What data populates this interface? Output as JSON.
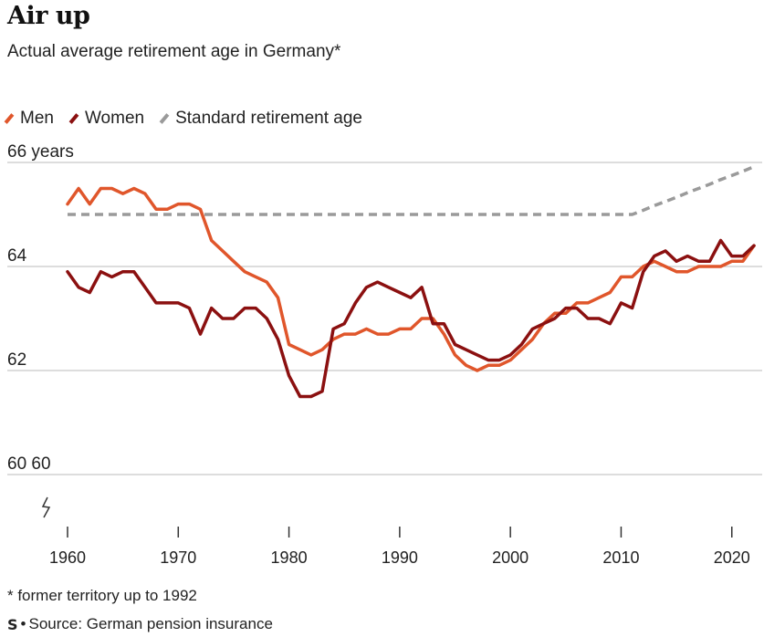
{
  "title": "Air up",
  "subtitle": "Actual average retirement age in Germany*",
  "footnote": "* former territory up to 1992",
  "source": "Source: German pension insurance",
  "logo": "S",
  "colors": {
    "men": "#e0562b",
    "women": "#8b1010",
    "standard": "#9a9a9a",
    "grid": "#bbbbbb",
    "axis": "#333333"
  },
  "chart_data": {
    "type": "line",
    "ylim": [
      60,
      66
    ],
    "xlim": [
      1960,
      2022
    ],
    "y_ticks": [
      {
        "value": 66,
        "label": "66 years"
      },
      {
        "value": 64,
        "label": "64"
      },
      {
        "value": 62,
        "label": "62"
      },
      {
        "value": 60,
        "label": "60 60"
      }
    ],
    "x_ticks": [
      1960,
      1970,
      1980,
      1990,
      2000,
      2010,
      2020
    ],
    "legend_position": "top-left",
    "series": [
      {
        "name": "Men",
        "key": "men",
        "style": "solid",
        "x": [
          1960,
          1961,
          1962,
          1963,
          1964,
          1965,
          1966,
          1967,
          1968,
          1969,
          1970,
          1971,
          1972,
          1973,
          1974,
          1975,
          1976,
          1977,
          1978,
          1979,
          1980,
          1981,
          1982,
          1983,
          1984,
          1985,
          1986,
          1987,
          1988,
          1989,
          1990,
          1991,
          1992,
          1993,
          1994,
          1995,
          1996,
          1997,
          1998,
          1999,
          2000,
          2001,
          2002,
          2003,
          2004,
          2005,
          2006,
          2007,
          2008,
          2009,
          2010,
          2011,
          2012,
          2013,
          2014,
          2015,
          2016,
          2017,
          2018,
          2019,
          2020,
          2021,
          2022
        ],
        "y": [
          65.2,
          65.5,
          65.2,
          65.5,
          65.5,
          65.4,
          65.5,
          65.4,
          65.1,
          65.1,
          65.2,
          65.2,
          65.1,
          64.5,
          64.3,
          64.1,
          63.9,
          63.8,
          63.7,
          63.4,
          62.5,
          62.4,
          62.3,
          62.4,
          62.6,
          62.7,
          62.7,
          62.8,
          62.7,
          62.7,
          62.8,
          62.8,
          63.0,
          63.0,
          62.7,
          62.3,
          62.1,
          62.0,
          62.1,
          62.1,
          62.2,
          62.4,
          62.6,
          62.9,
          63.1,
          63.1,
          63.3,
          63.3,
          63.4,
          63.5,
          63.8,
          63.8,
          64.0,
          64.1,
          64.0,
          63.9,
          63.9,
          64.0,
          64.0,
          64.0,
          64.1,
          64.1,
          64.4
        ]
      },
      {
        "name": "Women",
        "key": "women",
        "style": "solid",
        "x": [
          1960,
          1961,
          1962,
          1963,
          1964,
          1965,
          1966,
          1967,
          1968,
          1969,
          1970,
          1971,
          1972,
          1973,
          1974,
          1975,
          1976,
          1977,
          1978,
          1979,
          1980,
          1981,
          1982,
          1983,
          1984,
          1985,
          1986,
          1987,
          1988,
          1989,
          1990,
          1991,
          1992,
          1993,
          1994,
          1995,
          1996,
          1997,
          1998,
          1999,
          2000,
          2001,
          2002,
          2003,
          2004,
          2005,
          2006,
          2007,
          2008,
          2009,
          2010,
          2011,
          2012,
          2013,
          2014,
          2015,
          2016,
          2017,
          2018,
          2019,
          2020,
          2021,
          2022
        ],
        "y": [
          63.9,
          63.6,
          63.5,
          63.9,
          63.8,
          63.9,
          63.9,
          63.6,
          63.3,
          63.3,
          63.3,
          63.2,
          62.7,
          63.2,
          63.0,
          63.0,
          63.2,
          63.2,
          63.0,
          62.6,
          61.9,
          61.5,
          61.5,
          61.6,
          62.8,
          62.9,
          63.3,
          63.6,
          63.7,
          63.6,
          63.5,
          63.4,
          63.6,
          62.9,
          62.9,
          62.5,
          62.4,
          62.3,
          62.2,
          62.2,
          62.3,
          62.5,
          62.8,
          62.9,
          63.0,
          63.2,
          63.2,
          63.0,
          63.0,
          62.9,
          63.3,
          63.2,
          63.9,
          64.2,
          64.3,
          64.1,
          64.2,
          64.1,
          64.1,
          64.5,
          64.2,
          64.2,
          64.4
        ]
      },
      {
        "name": "Standard retirement age",
        "key": "standard",
        "style": "dashed",
        "x": [
          1960,
          2011,
          2012,
          2013,
          2014,
          2015,
          2016,
          2017,
          2018,
          2019,
          2020,
          2021,
          2022
        ],
        "y": [
          65.0,
          65.0,
          65.08,
          65.17,
          65.25,
          65.33,
          65.42,
          65.5,
          65.58,
          65.67,
          65.75,
          65.83,
          65.92
        ]
      }
    ]
  }
}
